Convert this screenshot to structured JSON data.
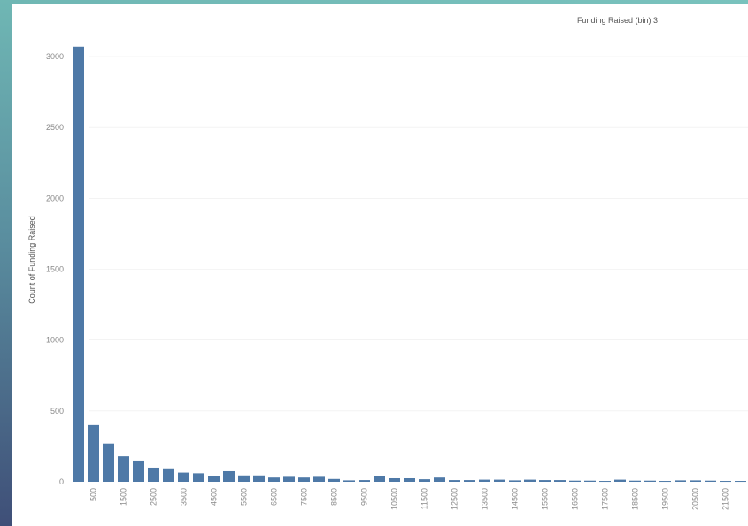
{
  "chart_data": {
    "type": "bar",
    "title": "Funding Raised (bin) 3",
    "ylabel": "Count of Funding Raised",
    "xlabel": "",
    "ylim": [
      0,
      3100
    ],
    "yticks": [
      0,
      500,
      1000,
      1500,
      2000,
      2500,
      3000
    ],
    "bin_start": -500,
    "bin_width": 500,
    "xtick_labels": [
      "500",
      "1500",
      "2500",
      "3500",
      "4500",
      "5500",
      "6500",
      "7500",
      "8500",
      "9500",
      "10500",
      "11500",
      "12500",
      "13500",
      "14500",
      "15500",
      "16500",
      "17500",
      "18500",
      "19500",
      "20500",
      "21500"
    ],
    "values": [
      3070,
      400,
      270,
      180,
      150,
      100,
      95,
      65,
      60,
      40,
      75,
      45,
      45,
      30,
      35,
      30,
      35,
      20,
      10,
      12,
      40,
      25,
      25,
      18,
      30,
      12,
      12,
      15,
      15,
      10,
      15,
      12,
      12,
      8,
      8,
      6,
      15,
      8,
      8,
      6,
      10,
      10,
      8,
      6,
      6
    ]
  },
  "colors": {
    "bar": "#4e79a7",
    "gridline": "#ececec",
    "frame": "#6fb7b4"
  }
}
